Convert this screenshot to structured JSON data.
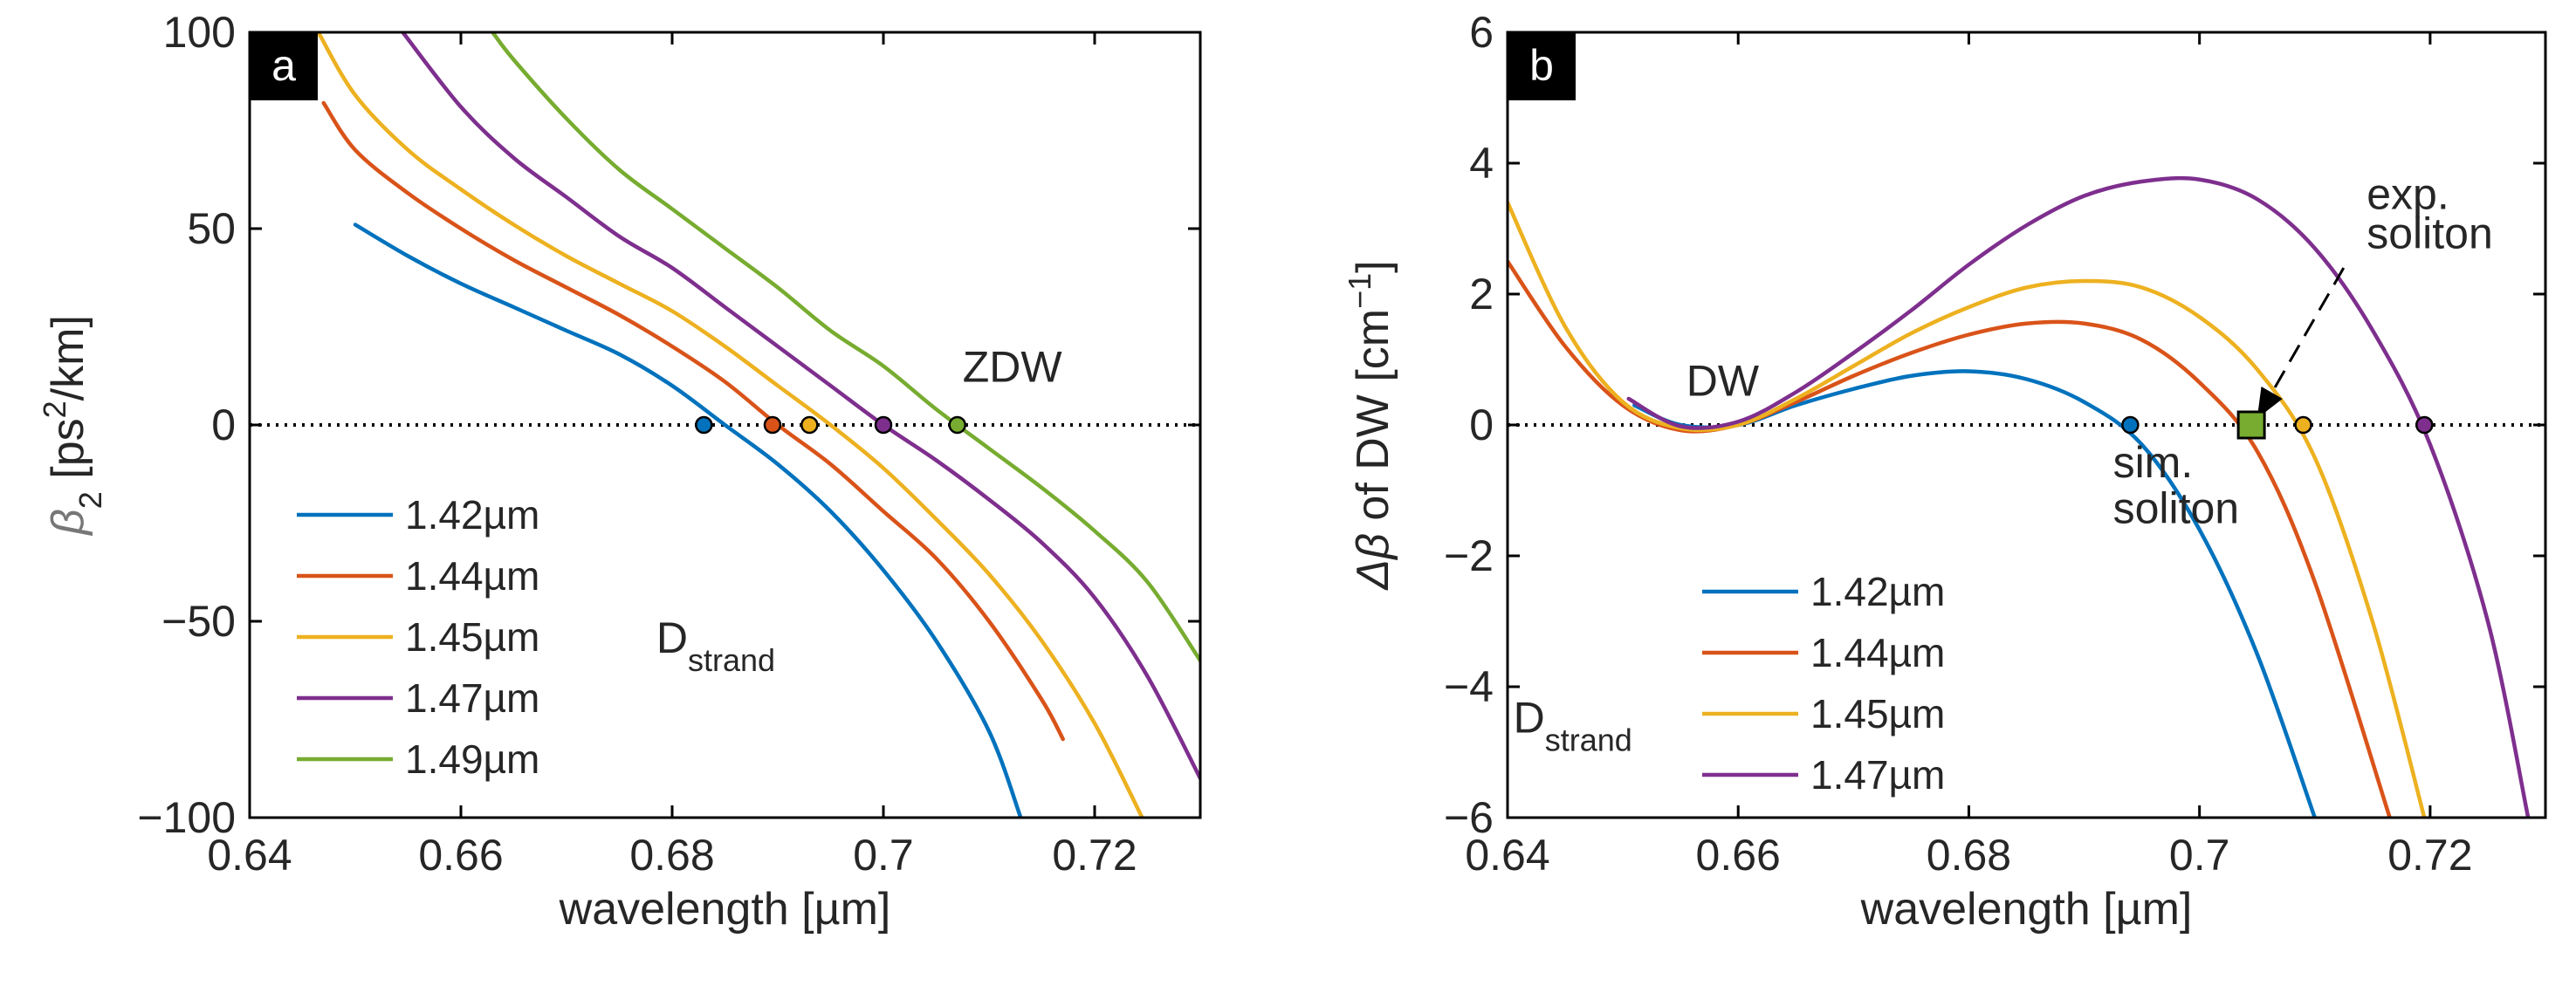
{
  "chart_data": [
    {
      "type": "line",
      "panel": "a",
      "xlabel": "wavelength [µm]",
      "ylabel": "β₂ [ps²/km]",
      "ylabel_parts": {
        "symbol": "β",
        "sub": "2",
        "unit_pre": " [ps",
        "sup": "2",
        "unit_post": "/km]"
      },
      "xlim": [
        0.64,
        0.73
      ],
      "ylim": [
        -100,
        100
      ],
      "xticks": [
        0.64,
        0.66,
        0.68,
        0.7,
        0.72
      ],
      "xtick_labels": [
        "0.64",
        "0.66",
        "0.68",
        "0.7",
        "0.72"
      ],
      "yticks": [
        -100,
        -50,
        0,
        50,
        100
      ],
      "ytick_labels": [
        "−100",
        "−50",
        "0",
        "50",
        "100"
      ],
      "zero_line": "dotted",
      "legend_position": "lower-left",
      "annotations": [
        {
          "id": "zdw",
          "text": "ZDW",
          "x": 0.7075,
          "y": 11
        },
        {
          "id": "dstrand",
          "text": "D",
          "sub": "strand",
          "x": 0.6785,
          "y": -58
        }
      ],
      "series": [
        {
          "name": "1.42µm",
          "color": "#0072BD",
          "x": [
            0.65,
            0.655,
            0.66,
            0.665,
            0.67,
            0.675,
            0.68,
            0.685,
            0.69,
            0.695,
            0.7,
            0.705,
            0.71,
            0.713
          ],
          "y": [
            51,
            43,
            36,
            30,
            24,
            18,
            10,
            0,
            -10,
            -22,
            -37,
            -55,
            -78,
            -100
          ]
        },
        {
          "name": "1.44µm",
          "color": "#D95319",
          "x": [
            0.647,
            0.65,
            0.655,
            0.66,
            0.665,
            0.67,
            0.675,
            0.68,
            0.685,
            0.69,
            0.695,
            0.7,
            0.705,
            0.71,
            0.715,
            0.717
          ],
          "y": [
            82,
            70,
            59,
            50,
            42,
            35,
            28,
            20,
            11,
            0,
            -10,
            -22,
            -34,
            -50,
            -70,
            -80
          ]
        },
        {
          "name": "1.45µm",
          "color": "#EDB120",
          "x": [
            0.6465,
            0.65,
            0.655,
            0.66,
            0.665,
            0.67,
            0.675,
            0.68,
            0.685,
            0.69,
            0.695,
            0.7,
            0.705,
            0.71,
            0.715,
            0.72,
            0.7245
          ],
          "y": [
            100,
            84,
            70,
            60,
            51,
            43,
            36,
            29,
            20,
            10,
            0,
            -11,
            -24,
            -38,
            -55,
            -76,
            -100
          ]
        },
        {
          "name": "1.47µm",
          "color": "#7E2F8E",
          "x": [
            0.6545,
            0.66,
            0.665,
            0.67,
            0.675,
            0.68,
            0.685,
            0.69,
            0.695,
            0.7,
            0.705,
            0.71,
            0.715,
            0.72,
            0.725,
            0.73
          ],
          "y": [
            100,
            81,
            68,
            58,
            48,
            40,
            30,
            20,
            10,
            0,
            -9,
            -19,
            -30,
            -44,
            -64,
            -90
          ]
        },
        {
          "name": "1.49µm",
          "color": "#77AC30",
          "x": [
            0.663,
            0.665,
            0.67,
            0.675,
            0.68,
            0.685,
            0.69,
            0.695,
            0.7,
            0.705,
            0.71,
            0.715,
            0.72,
            0.725,
            0.73
          ],
          "y": [
            100,
            93,
            78,
            65,
            55,
            45,
            35,
            24,
            15,
            4,
            -6,
            -16,
            -27,
            -40,
            -60
          ]
        }
      ],
      "markers": [
        {
          "x": 0.683,
          "y": 0,
          "color": "#0072BD",
          "shape": "circle"
        },
        {
          "x": 0.6895,
          "y": 0,
          "color": "#D95319",
          "shape": "circle"
        },
        {
          "x": 0.693,
          "y": 0,
          "color": "#EDB120",
          "shape": "circle"
        },
        {
          "x": 0.7,
          "y": 0,
          "color": "#7E2F8E",
          "shape": "circle"
        },
        {
          "x": 0.707,
          "y": 0,
          "color": "#77AC30",
          "shape": "circle"
        }
      ]
    },
    {
      "type": "line",
      "panel": "b",
      "xlabel": "wavelength [µm]",
      "ylabel": "Δβ of DW [cm⁻¹]",
      "ylabel_parts": {
        "symbol": "Δβ",
        "text": " of DW [cm",
        "sup": "−1",
        "close": "]"
      },
      "xlim": [
        0.64,
        0.73
      ],
      "ylim": [
        -6,
        6
      ],
      "xticks": [
        0.64,
        0.66,
        0.68,
        0.7,
        0.72
      ],
      "xtick_labels": [
        "0.64",
        "0.66",
        "0.68",
        "0.7",
        "0.72"
      ],
      "yticks": [
        -6,
        -4,
        -2,
        0,
        2,
        4,
        6
      ],
      "ytick_labels": [
        "−6",
        "−4",
        "−2",
        "0",
        "2",
        "4",
        "6"
      ],
      "zero_line": "dotted",
      "legend_position": "lower-left",
      "annotations": [
        {
          "id": "dw",
          "text": "DW",
          "x": 0.6555,
          "y": 0.45
        },
        {
          "id": "exp1",
          "text": "exp.",
          "x": 0.7145,
          "y": 3.3
        },
        {
          "id": "exp2",
          "text": "soliton",
          "x": 0.7145,
          "y": 2.7
        },
        {
          "id": "sim1",
          "text": "sim.",
          "x": 0.6925,
          "y": -0.8
        },
        {
          "id": "sim2",
          "text": "soliton",
          "x": 0.6925,
          "y": -1.5
        },
        {
          "id": "dstrand",
          "text": "D",
          "sub": "strand",
          "x": 0.6405,
          "y": -4.7
        }
      ],
      "arrow": {
        "from": [
          0.7125,
          2.4
        ],
        "to": [
          0.705,
          0.1
        ]
      },
      "series": [
        {
          "name": "1.42µm",
          "color": "#0072BD",
          "x": [
            0.651,
            0.655,
            0.66,
            0.665,
            0.67,
            0.675,
            0.68,
            0.685,
            0.69,
            0.695,
            0.7,
            0.705,
            0.71
          ],
          "y": [
            0.3,
            0.0,
            0.0,
            0.3,
            0.55,
            0.75,
            0.82,
            0.7,
            0.35,
            -0.3,
            -1.6,
            -3.5,
            -6
          ]
        },
        {
          "name": "1.44µm",
          "color": "#D95319",
          "x": [
            0.64,
            0.645,
            0.65,
            0.655,
            0.66,
            0.665,
            0.67,
            0.675,
            0.68,
            0.685,
            0.69,
            0.695,
            0.7,
            0.705,
            0.71,
            0.7165
          ],
          "y": [
            2.5,
            1.2,
            0.3,
            -0.08,
            0.0,
            0.35,
            0.75,
            1.1,
            1.38,
            1.55,
            1.55,
            1.3,
            0.65,
            -0.4,
            -2.4,
            -6
          ]
        },
        {
          "name": "1.45µm",
          "color": "#EDB120",
          "x": [
            0.64,
            0.645,
            0.65,
            0.655,
            0.66,
            0.665,
            0.67,
            0.675,
            0.68,
            0.685,
            0.69,
            0.695,
            0.7,
            0.705,
            0.71,
            0.715,
            0.7195
          ],
          "y": [
            3.4,
            1.5,
            0.35,
            -0.05,
            0.0,
            0.4,
            0.9,
            1.4,
            1.8,
            2.1,
            2.2,
            2.1,
            1.65,
            0.85,
            -0.5,
            -3.0,
            -6
          ]
        },
        {
          "name": "1.47µm",
          "color": "#7E2F8E",
          "x": [
            0.6505,
            0.655,
            0.66,
            0.665,
            0.67,
            0.675,
            0.68,
            0.685,
            0.69,
            0.695,
            0.7,
            0.705,
            0.71,
            0.715,
            0.72,
            0.725,
            0.7285
          ],
          "y": [
            0.4,
            -0.02,
            0.05,
            0.5,
            1.1,
            1.75,
            2.45,
            3.05,
            3.5,
            3.72,
            3.75,
            3.45,
            2.7,
            1.45,
            -0.3,
            -3.0,
            -6
          ]
        }
      ],
      "markers": [
        {
          "x": 0.694,
          "y": 0,
          "color": "#0072BD",
          "shape": "circle"
        },
        {
          "x": 0.7045,
          "y": 0,
          "color": "#77AC30",
          "shape": "square"
        },
        {
          "x": 0.709,
          "y": 0,
          "color": "#EDB120",
          "shape": "circle"
        },
        {
          "x": 0.7195,
          "y": 0,
          "color": "#7E2F8E",
          "shape": "circle"
        }
      ]
    }
  ]
}
